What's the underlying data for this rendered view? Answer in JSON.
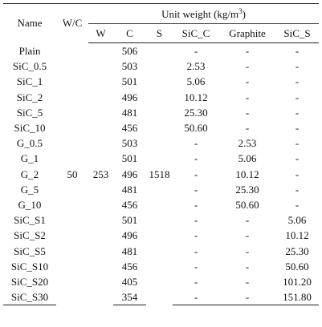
{
  "header": {
    "name": "Name",
    "wc": "W/C",
    "unit_weight": "Unit weight (kg/m",
    "unit_weight_sup": "3",
    "unit_weight_close": ")",
    "cols": [
      "W",
      "C",
      "S",
      "SiC_C",
      "Graphite",
      "SiC_S"
    ]
  },
  "shared": {
    "wc": "50",
    "w": "253",
    "s": "1518"
  },
  "rows": [
    {
      "name": "Plain",
      "c": "506",
      "sicc": "-",
      "graphite": "-",
      "sics": "-"
    },
    {
      "name": "SiC_0.5",
      "c": "503",
      "sicc": "2.53",
      "graphite": "-",
      "sics": "-"
    },
    {
      "name": "SiC_1",
      "c": "501",
      "sicc": "5.06",
      "graphite": "-",
      "sics": "-"
    },
    {
      "name": "SiC_2",
      "c": "496",
      "sicc": "10.12",
      "graphite": "-",
      "sics": "-"
    },
    {
      "name": "SiC_5",
      "c": "481",
      "sicc": "25.30",
      "graphite": "-",
      "sics": "-"
    },
    {
      "name": "SiC_10",
      "c": "456",
      "sicc": "50.60",
      "graphite": "-",
      "sics": "-"
    },
    {
      "name": "G_0.5",
      "c": "503",
      "sicc": "-",
      "graphite": "2.53",
      "sics": "-"
    },
    {
      "name": "G_1",
      "c": "501",
      "sicc": "-",
      "graphite": "5.06",
      "sics": "-"
    },
    {
      "name": "G_2",
      "c": "496",
      "sicc": "-",
      "graphite": "10.12",
      "sics": "-"
    },
    {
      "name": "G_5",
      "c": "481",
      "sicc": "-",
      "graphite": "25.30",
      "sics": "-"
    },
    {
      "name": "G_10",
      "c": "456",
      "sicc": "-",
      "graphite": "50.60",
      "sics": "-"
    },
    {
      "name": "SiC_S1",
      "c": "501",
      "sicc": "-",
      "graphite": "-",
      "sics": "5.06"
    },
    {
      "name": "SiC_S2",
      "c": "496",
      "sicc": "-",
      "graphite": "-",
      "sics": "10.12"
    },
    {
      "name": "SiC_S5",
      "c": "481",
      "sicc": "-",
      "graphite": "-",
      "sics": "25.30"
    },
    {
      "name": "SiC_S10",
      "c": "456",
      "sicc": "-",
      "graphite": "-",
      "sics": "50.60"
    },
    {
      "name": "SiC_S20",
      "c": "405",
      "sicc": "-",
      "graphite": "-",
      "sics": "101.20"
    },
    {
      "name": "SiC_S30",
      "c": "354",
      "sicc": "-",
      "graphite": "-",
      "sics": "151.80"
    }
  ]
}
